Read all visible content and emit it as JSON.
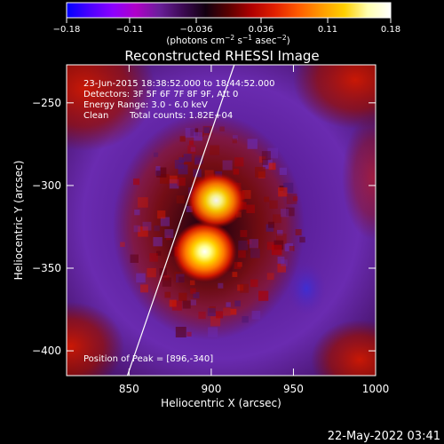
{
  "chart_data": {
    "type": "heatmap",
    "title": "Reconstructed RHESSI Image",
    "xlabel": "Heliocentric X (arcsec)",
    "ylabel": "Heliocentric Y (arcsec)",
    "xlim": [
      812,
      1000
    ],
    "ylim": [
      -415,
      -227
    ],
    "x_ticks": [
      850,
      900,
      950,
      1000
    ],
    "x_tick_labels": [
      "850",
      "900",
      "950",
      "1000"
    ],
    "y_ticks": [
      -250,
      -300,
      -350,
      -400
    ],
    "y_tick_labels": [
      "−250",
      "−300",
      "−350",
      "−400"
    ],
    "colorbar": {
      "range": [
        -0.18,
        0.18
      ],
      "ticks": [
        -0.18,
        -0.11,
        -0.036,
        0.036,
        0.11,
        0.18
      ],
      "tick_labels": [
        "−0.18",
        "−0.11",
        "−0.036",
        "0.036",
        "0.11",
        "0.18"
      ],
      "unit_parts": [
        "(photons cm",
        "−2",
        " s",
        "−1",
        " asec",
        "−2",
        ")"
      ],
      "colors": [
        "#0000ff",
        "#4b00ff",
        "#8c00ff",
        "#b000c8",
        "#6a1f9a",
        "#3d0a55",
        "#120010",
        "#5a0000",
        "#b00000",
        "#e12000",
        "#ff5a00",
        "#ff9a00",
        "#ffd000",
        "#ffffb0",
        "#ffffff"
      ]
    },
    "annotations": {
      "time_range": "23-Jun-2015 18:38:52.000 to 18:44:52.000",
      "detectors": "Detectors: 3F 5F 6F 7F 8F 9F, Att 0",
      "energy": "Energy Range: 3.0 - 6.0 keV",
      "clean": "Clean",
      "counts": "Total counts: 1.82E+04",
      "peak": "Position of Peak = [896,-340]"
    },
    "peak_position": [
      896,
      -340
    ],
    "sources": [
      {
        "x": 896,
        "y": -340,
        "relative_intensity": 1.0
      },
      {
        "x": 903,
        "y": -309,
        "relative_intensity": 0.8
      }
    ],
    "limb_line": [
      [
        849,
        -415
      ],
      [
        914,
        -227
      ]
    ],
    "grid": false
  },
  "footer": {
    "timestamp": "22-May-2022 03:41"
  }
}
